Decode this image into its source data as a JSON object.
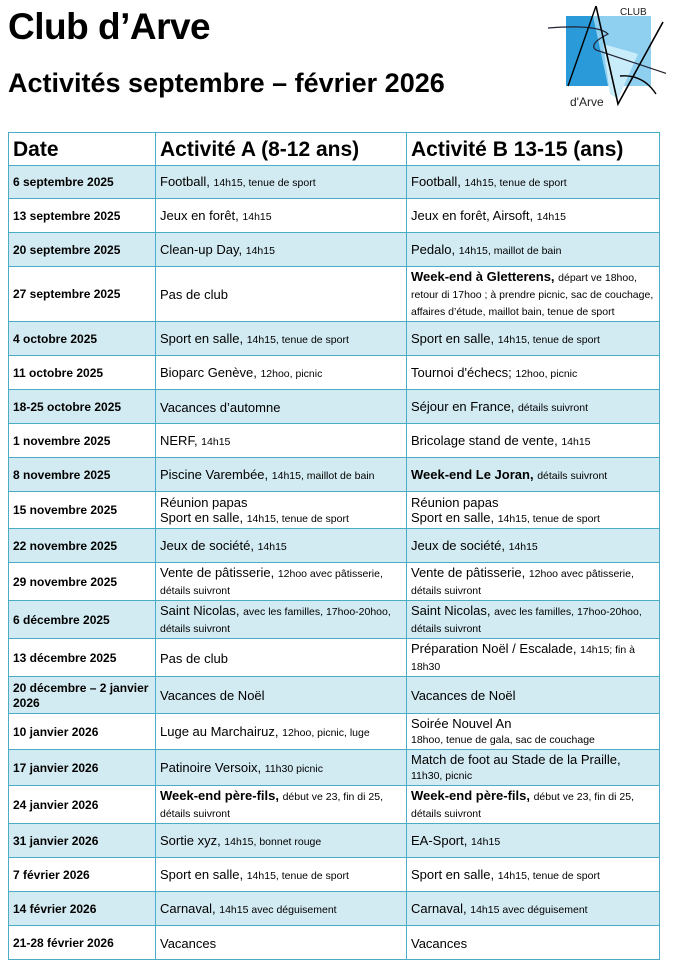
{
  "header": {
    "title": "Club d’Arve",
    "subtitle": "Activités septembre – février 2026",
    "logo_text": [
      "CLUB",
      "d'Arve"
    ]
  },
  "colors": {
    "border": "#4bacc6",
    "shade": "#d2eaf1",
    "logo_blue": "#2a9ad8",
    "logo_light": "#8fd0f0"
  },
  "table": {
    "columns": [
      "Date",
      "Activité A (8-12 ans)",
      "Activité B 13-15 (ans)"
    ],
    "rows": [
      {
        "date": "6 septembre 2025",
        "a": [
          [
            [
              "n",
              "Football, "
            ],
            [
              "s",
              "14h15, tenue de sport"
            ]
          ]
        ],
        "b": [
          [
            [
              "n",
              "Football, "
            ],
            [
              "s",
              "14h15, tenue de sport"
            ]
          ]
        ]
      },
      {
        "date": "13 septembre 2025",
        "a": [
          [
            [
              "n",
              "Jeux en forêt, "
            ],
            [
              "s",
              "14h15"
            ]
          ]
        ],
        "b": [
          [
            [
              "n",
              "Jeux en forêt, Airsoft, "
            ],
            [
              "s",
              "14h15"
            ]
          ]
        ]
      },
      {
        "date": "20 septembre 2025",
        "a": [
          [
            [
              "n",
              "Clean-up Day, "
            ],
            [
              "s",
              "14h15"
            ]
          ]
        ],
        "b": [
          [
            [
              "n",
              "Pedalo, "
            ],
            [
              "s",
              "14h15, maillot de bain"
            ]
          ]
        ]
      },
      {
        "date": "27 septembre 2025",
        "a": [
          [
            [
              "n",
              "Pas de club"
            ]
          ]
        ],
        "b": [
          [
            [
              "b",
              "Week-end à Gletterens, "
            ],
            [
              "s",
              "départ ve 18hoo, retour di 17hoo ; à prendre picnic, sac de couchage, affaires d’étude, maillot bain, tenue de sport"
            ]
          ]
        ]
      },
      {
        "date": "4 octobre 2025",
        "a": [
          [
            [
              "n",
              "Sport en salle, "
            ],
            [
              "s",
              "14h15, tenue de sport"
            ]
          ]
        ],
        "b": [
          [
            [
              "n",
              "Sport en salle, "
            ],
            [
              "s",
              "14h15, tenue de sport"
            ]
          ]
        ]
      },
      {
        "date": "11 octobre 2025",
        "a": [
          [
            [
              "n",
              "Bioparc Genève, "
            ],
            [
              "s",
              "12hoo, picnic"
            ]
          ]
        ],
        "b": [
          [
            [
              "n",
              "Tournoi d'échecs; "
            ],
            [
              "s",
              "12hoo, picnic"
            ]
          ]
        ]
      },
      {
        "date": "18-25 octobre 2025",
        "a": [
          [
            [
              "n",
              "Vacances d’automne"
            ]
          ]
        ],
        "b": [
          [
            [
              "n",
              "Séjour en France, "
            ],
            [
              "s",
              "détails suivront"
            ]
          ]
        ]
      },
      {
        "date": "1 novembre 2025",
        "a": [
          [
            [
              "n",
              "NERF, "
            ],
            [
              "s",
              "14h15"
            ]
          ]
        ],
        "b": [
          [
            [
              "n",
              "Bricolage stand de vente, "
            ],
            [
              "s",
              "14h15"
            ]
          ]
        ]
      },
      {
        "date": "8 novembre 2025",
        "a": [
          [
            [
              "n",
              "Piscine Varembée, "
            ],
            [
              "s",
              "14h15, maillot de bain"
            ]
          ]
        ],
        "b": [
          [
            [
              "b",
              "Week-end Le Joran, "
            ],
            [
              "s",
              "détails suivront"
            ]
          ]
        ]
      },
      {
        "date": "15 novembre 2025",
        "a": [
          [
            [
              "n",
              "Réunion papas"
            ]
          ],
          [
            [
              "n",
              "Sport en salle, "
            ],
            [
              "s",
              "14h15, tenue de sport"
            ]
          ]
        ],
        "b": [
          [
            [
              "n",
              "Réunion papas"
            ]
          ],
          [
            [
              "n",
              "Sport en salle, "
            ],
            [
              "s",
              "14h15, tenue de sport"
            ]
          ]
        ]
      },
      {
        "date": "22 novembre 2025",
        "a": [
          [
            [
              "n",
              "Jeux de société, "
            ],
            [
              "s",
              "14h15"
            ]
          ]
        ],
        "b": [
          [
            [
              "n",
              "Jeux de société, "
            ],
            [
              "s",
              "14h15"
            ]
          ]
        ]
      },
      {
        "date": "29 novembre 2025",
        "a": [
          [
            [
              "n",
              "Vente de pâtisserie, "
            ],
            [
              "s",
              "12hoo avec pâtisserie, détails suivront"
            ]
          ]
        ],
        "b": [
          [
            [
              "n",
              "Vente de pâtisserie, "
            ],
            [
              "s",
              "12hoo avec pâtisserie, détails suivront"
            ]
          ]
        ]
      },
      {
        "date": "6 décembre 2025",
        "a": [
          [
            [
              "n",
              "Saint Nicolas, "
            ],
            [
              "s",
              "avec les familles, 17hoo-20hoo, détails suivront"
            ]
          ]
        ],
        "b": [
          [
            [
              "n",
              "Saint Nicolas, "
            ],
            [
              "s",
              "avec les familles, 17hoo-20hoo, détails suivront"
            ]
          ]
        ]
      },
      {
        "date": "13 décembre 2025",
        "a": [
          [
            [
              "n",
              "Pas de club"
            ]
          ]
        ],
        "b": [
          [
            [
              "n",
              "Préparation Noël / Escalade, "
            ],
            [
              "s",
              "14h15; fin à 18h30"
            ]
          ]
        ]
      },
      {
        "date": "20 décembre – 2 janvier 2026",
        "a": [
          [
            [
              "n",
              "Vacances de Noël"
            ]
          ]
        ],
        "b": [
          [
            [
              "n",
              "Vacances de Noël"
            ]
          ]
        ]
      },
      {
        "date": "10 janvier 2026",
        "a": [
          [
            [
              "n",
              "Luge au Marchairuz, "
            ],
            [
              "s",
              "12hoo, picnic, luge"
            ]
          ]
        ],
        "b": [
          [
            [
              "n",
              "Soirée Nouvel An"
            ]
          ],
          [
            [
              "s",
              "18hoo, tenue de gala, sac de couchage"
            ]
          ]
        ]
      },
      {
        "date": "17 janvier 2026",
        "a": [
          [
            [
              "n",
              "Patinoire Versoix, "
            ],
            [
              "s",
              "11h30 picnic"
            ]
          ]
        ],
        "b": [
          [
            [
              "n",
              "Match de foot au Stade de la Praille, "
            ],
            [
              "s",
              "11h30, picnic"
            ]
          ]
        ]
      },
      {
        "date": "24 janvier 2026",
        "a": [
          [
            [
              "b",
              "Week-end père-fils, "
            ],
            [
              "s",
              "début ve 23, fin di 25, détails suivront"
            ]
          ]
        ],
        "b": [
          [
            [
              "b",
              "Week-end père-fils, "
            ],
            [
              "s",
              "début ve 23, fin di 25, détails suivront"
            ]
          ]
        ]
      },
      {
        "date": "31 janvier 2026",
        "a": [
          [
            [
              "n",
              "Sortie xyz, "
            ],
            [
              "s",
              "14h15, bonnet rouge"
            ]
          ]
        ],
        "b": [
          [
            [
              "n",
              "EA-Sport, "
            ],
            [
              "s",
              "14h15"
            ]
          ]
        ]
      },
      {
        "date": "7 février 2026",
        "a": [
          [
            [
              "n",
              "Sport en salle, "
            ],
            [
              "s",
              "14h15, tenue de sport"
            ]
          ]
        ],
        "b": [
          [
            [
              "n",
              "Sport en salle, "
            ],
            [
              "s",
              "14h15, tenue de sport"
            ]
          ]
        ]
      },
      {
        "date": "14 février 2026",
        "a": [
          [
            [
              "n",
              "Carnaval, "
            ],
            [
              "s",
              "14h15 avec déguisement"
            ]
          ]
        ],
        "b": [
          [
            [
              "n",
              "Carnaval, "
            ],
            [
              "s",
              "14h15 avec déguisement"
            ]
          ]
        ]
      },
      {
        "date": "21-28 février 2026",
        "a": [
          [
            [
              "n",
              "Vacances"
            ]
          ]
        ],
        "b": [
          [
            [
              "n",
              "Vacances"
            ]
          ]
        ]
      }
    ]
  }
}
